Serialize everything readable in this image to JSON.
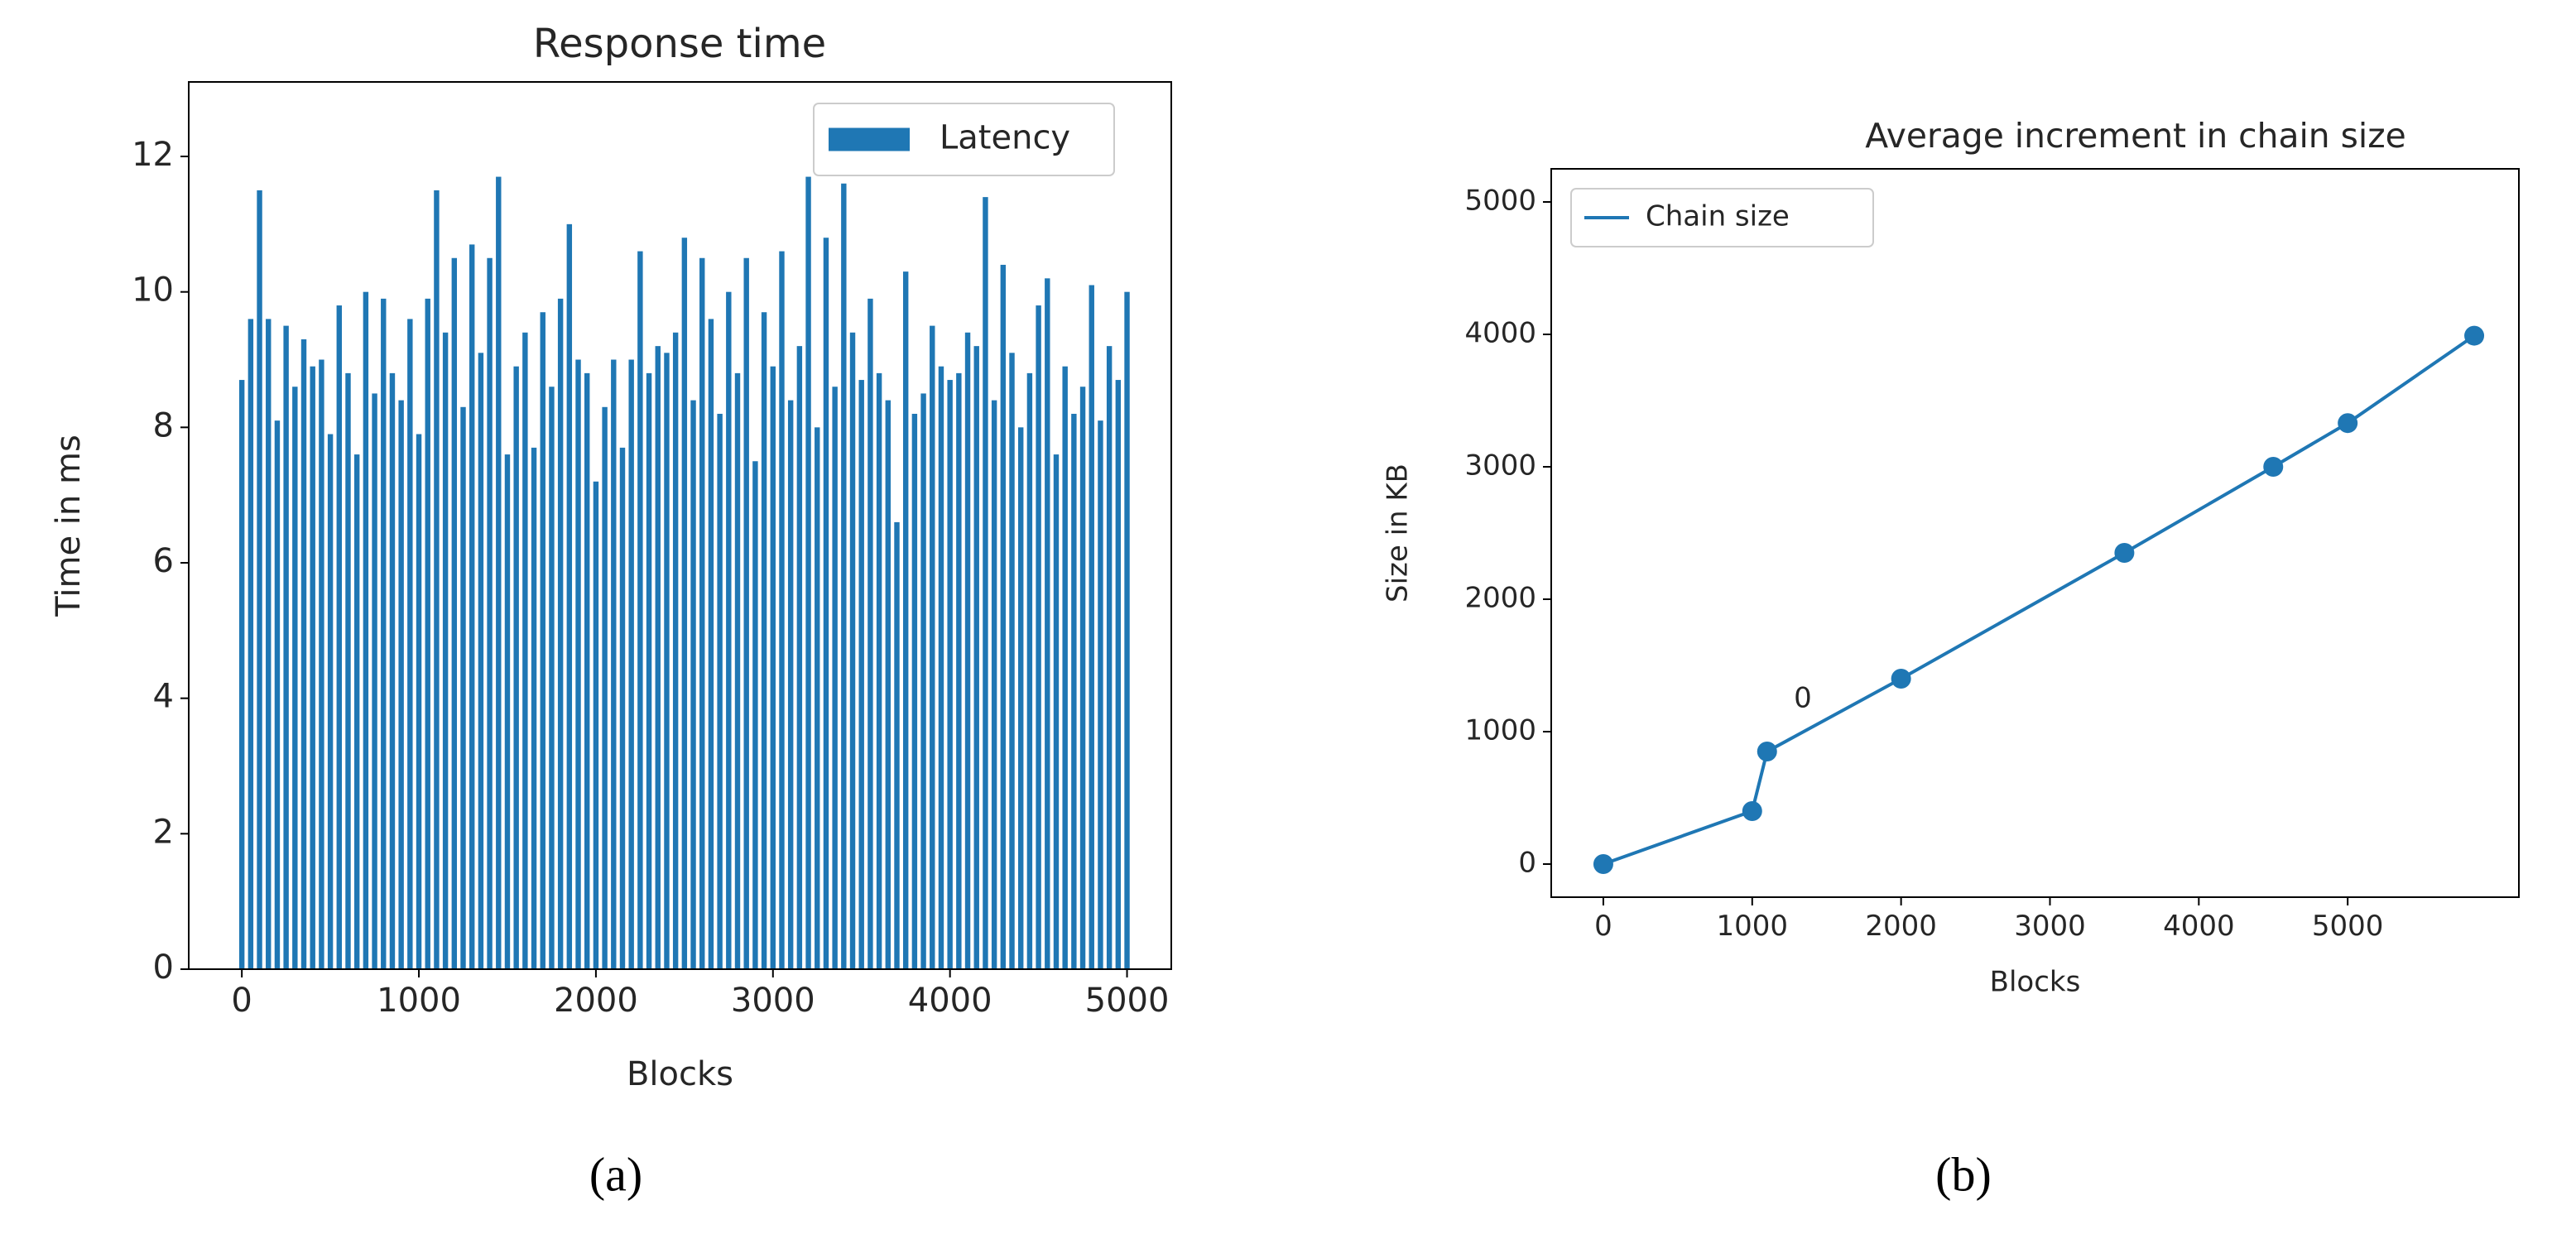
{
  "chart_data": [
    {
      "type": "bar",
      "title": "Response time",
      "x_label": "Blocks",
      "y_label": "Time in ms",
      "caption": "(a)",
      "x": [
        0,
        50,
        100,
        150,
        200,
        250,
        300,
        350,
        400,
        450,
        500,
        550,
        600,
        650,
        700,
        750,
        800,
        850,
        900,
        950,
        1000,
        1050,
        1100,
        1150,
        1200,
        1250,
        1300,
        1350,
        1400,
        1450,
        1500,
        1550,
        1600,
        1650,
        1700,
        1750,
        1800,
        1850,
        1900,
        1950,
        2000,
        2050,
        2100,
        2150,
        2200,
        2250,
        2300,
        2350,
        2400,
        2450,
        2500,
        2550,
        2600,
        2650,
        2700,
        2750,
        2800,
        2850,
        2900,
        2950,
        3000,
        3050,
        3100,
        3150,
        3200,
        3250,
        3300,
        3350,
        3400,
        3450,
        3500,
        3550,
        3600,
        3650,
        3700,
        3750,
        3800,
        3850,
        3900,
        3950,
        4000,
        4050,
        4100,
        4150,
        4200,
        4250,
        4300,
        4350,
        4400,
        4450,
        4500,
        4550,
        4600,
        4650,
        4700,
        4750,
        4800,
        4850,
        4900,
        4950,
        5000
      ],
      "series": [
        {
          "name": "Latency",
          "color": "#1f77b4",
          "values": [
            8.7,
            9.6,
            11.5,
            9.6,
            8.1,
            9.5,
            8.6,
            9.3,
            8.9,
            9.0,
            7.9,
            9.8,
            8.8,
            7.6,
            10.0,
            8.5,
            9.9,
            8.8,
            8.4,
            9.6,
            7.9,
            9.9,
            11.5,
            9.4,
            10.5,
            8.3,
            10.7,
            9.1,
            10.5,
            11.7,
            7.6,
            8.9,
            9.4,
            7.7,
            9.7,
            8.6,
            9.9,
            11.0,
            9.0,
            8.8,
            7.2,
            8.3,
            9.0,
            7.7,
            9.0,
            10.6,
            8.8,
            9.2,
            9.1,
            9.4,
            10.8,
            8.4,
            10.5,
            9.6,
            8.2,
            10.0,
            8.8,
            10.5,
            7.5,
            9.7,
            8.9,
            10.6,
            8.4,
            9.2,
            11.7,
            8.0,
            10.8,
            8.6,
            11.6,
            9.4,
            8.7,
            9.9,
            8.8,
            8.4,
            6.6,
            10.3,
            8.2,
            8.5,
            9.5,
            8.9,
            8.7,
            8.8,
            9.4,
            9.2,
            11.4,
            8.4,
            10.4,
            9.1,
            8.0,
            8.8,
            9.8,
            10.2,
            7.6,
            8.9,
            8.2,
            8.6,
            10.1,
            8.1,
            9.2,
            8.7,
            10.0
          ]
        }
      ],
      "xlim": [
        -300,
        5250
      ],
      "xticks": [
        0,
        1000,
        2000,
        3000,
        4000,
        5000
      ],
      "ylim": [
        0,
        13.1
      ],
      "yticks": [
        0,
        2,
        4,
        6,
        8,
        10,
        12
      ],
      "legend": "upper right"
    },
    {
      "type": "line",
      "title": "Average increment in chain size",
      "x_label": "Blocks",
      "y_label": "Size in KB",
      "caption": "(b)",
      "x": [
        0,
        1000,
        1100,
        2000,
        3500,
        4500,
        5000,
        5850
      ],
      "series": [
        {
          "name": "Chain size",
          "color": "#1f77b4",
          "values": [
            0,
            400,
            850,
            1400,
            2350,
            3000,
            3330,
            3990
          ]
        }
      ],
      "annotations": [
        "0"
      ],
      "xlim": [
        -350,
        6150
      ],
      "xticks": [
        0,
        1000,
        2000,
        3000,
        4000,
        5000
      ],
      "ylim": [
        -250,
        5250
      ],
      "yticks": [
        0,
        1000,
        2000,
        3000,
        4000,
        5000
      ],
      "legend": "upper left"
    }
  ]
}
